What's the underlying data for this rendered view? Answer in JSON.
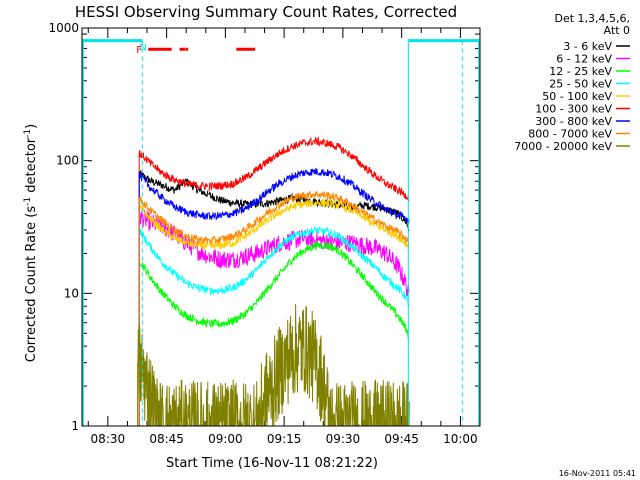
{
  "colors": {
    "background": "#ffffff",
    "axes": "#000000",
    "attenuator": "#00e5e5",
    "flare_flag": "#ff0000"
  },
  "chart_data": {
    "type": "line",
    "title": "HESSI Observing Summary Count Rates, Corrected",
    "xlabel": "Start Time (16-Nov-11 08:21:22)",
    "ylabel_main": "Corrected Count Rate (s",
    "ylabel_sup1": "-1",
    "ylabel_mid": " detector",
    "ylabel_sup2": "-1",
    "ylabel_end": ")",
    "y_scale": "log",
    "ylim": [
      1,
      1000
    ],
    "xlim_minutes_of_day": [
      503.4,
      605
    ],
    "x_ticks": [
      {
        "t": 510,
        "label": "08:30"
      },
      {
        "t": 525,
        "label": "08:45"
      },
      {
        "t": 540,
        "label": "09:00"
      },
      {
        "t": 555,
        "label": "09:15"
      },
      {
        "t": 570,
        "label": "09:30"
      },
      {
        "t": 585,
        "label": "09:45"
      },
      {
        "t": 600,
        "label": "10:00"
      }
    ],
    "y_ticks": [
      {
        "v": 1,
        "label": "1"
      },
      {
        "v": 10,
        "label": "10"
      },
      {
        "v": 100,
        "label": "100"
      },
      {
        "v": 1000,
        "label": "1000"
      }
    ],
    "legend_title_1": "Det 1,3,4,5,6,",
    "legend_title_2": "Att 0",
    "legend_placement": "right",
    "data_gap": [
      535.6,
      535.7
    ],
    "series": [
      {
        "name": "3 - 6 keV",
        "color": "#000000",
        "points": [
          [
            518,
            80
          ],
          [
            521,
            70
          ],
          [
            524,
            65
          ],
          [
            527,
            60
          ],
          [
            530,
            70
          ],
          [
            533,
            60
          ],
          [
            536,
            55
          ],
          [
            539,
            50
          ],
          [
            542,
            48
          ],
          [
            545,
            47
          ],
          [
            548,
            47
          ],
          [
            551,
            48
          ],
          [
            554,
            50
          ],
          [
            557,
            52
          ],
          [
            560,
            51
          ],
          [
            563,
            49
          ],
          [
            566,
            48
          ],
          [
            569,
            46
          ],
          [
            572,
            44
          ],
          [
            575,
            46
          ],
          [
            578,
            45
          ],
          [
            581,
            43
          ],
          [
            584,
            40
          ],
          [
            586,
            35
          ],
          [
            587,
            30
          ]
        ]
      },
      {
        "name": "6 - 12 keV",
        "color": "#ff00ff",
        "points": [
          [
            518,
            38
          ],
          [
            521,
            34
          ],
          [
            524,
            32
          ],
          [
            527,
            28
          ],
          [
            530,
            24
          ],
          [
            533,
            21
          ],
          [
            536,
            19
          ],
          [
            539,
            18
          ],
          [
            542,
            18
          ],
          [
            545,
            19
          ],
          [
            548,
            20
          ],
          [
            551,
            22
          ],
          [
            554,
            24
          ],
          [
            557,
            25
          ],
          [
            560,
            26
          ],
          [
            563,
            25
          ],
          [
            566,
            25
          ],
          [
            569,
            24
          ],
          [
            572,
            24
          ],
          [
            575,
            23
          ],
          [
            578,
            22
          ],
          [
            581,
            20
          ],
          [
            584,
            16
          ],
          [
            586,
            12
          ],
          [
            587,
            9
          ]
        ]
      },
      {
        "name": "12 - 25 keV",
        "color": "#00ff00",
        "points": [
          [
            518,
            18
          ],
          [
            521,
            13
          ],
          [
            524,
            10
          ],
          [
            527,
            8
          ],
          [
            530,
            6.8
          ],
          [
            533,
            6.2
          ],
          [
            536,
            5.9
          ],
          [
            539,
            5.9
          ],
          [
            542,
            6.2
          ],
          [
            545,
            7
          ],
          [
            548,
            8.5
          ],
          [
            551,
            11
          ],
          [
            554,
            14
          ],
          [
            557,
            18
          ],
          [
            560,
            21
          ],
          [
            563,
            23
          ],
          [
            566,
            23
          ],
          [
            569,
            21
          ],
          [
            572,
            17
          ],
          [
            575,
            13.5
          ],
          [
            578,
            10.5
          ],
          [
            581,
            8.5
          ],
          [
            584,
            6.8
          ],
          [
            586,
            5.5
          ],
          [
            587,
            4.5
          ]
        ]
      },
      {
        "name": "25 - 50 keV",
        "color": "#00ffff",
        "points": [
          [
            518,
            30
          ],
          [
            521,
            22
          ],
          [
            524,
            17
          ],
          [
            527,
            14
          ],
          [
            530,
            12
          ],
          [
            533,
            11
          ],
          [
            536,
            10.5
          ],
          [
            539,
            10.5
          ],
          [
            542,
            11
          ],
          [
            545,
            12.5
          ],
          [
            548,
            15
          ],
          [
            551,
            19
          ],
          [
            554,
            23
          ],
          [
            557,
            26.5
          ],
          [
            560,
            28.5
          ],
          [
            563,
            30
          ],
          [
            566,
            29
          ],
          [
            569,
            27
          ],
          [
            572,
            23
          ],
          [
            575,
            19
          ],
          [
            578,
            16
          ],
          [
            581,
            13
          ],
          [
            584,
            11
          ],
          [
            586,
            9.5
          ],
          [
            587,
            8
          ]
        ]
      },
      {
        "name": "50 - 100 keV",
        "color": "#ffcc00",
        "points": [
          [
            518,
            45
          ],
          [
            521,
            36
          ],
          [
            524,
            30
          ],
          [
            527,
            26
          ],
          [
            530,
            24
          ],
          [
            533,
            23
          ],
          [
            536,
            22.5
          ],
          [
            539,
            23
          ],
          [
            542,
            24
          ],
          [
            545,
            27
          ],
          [
            548,
            31
          ],
          [
            551,
            36
          ],
          [
            554,
            41
          ],
          [
            557,
            45
          ],
          [
            560,
            47
          ],
          [
            563,
            48
          ],
          [
            566,
            48
          ],
          [
            569,
            46
          ],
          [
            572,
            43
          ],
          [
            575,
            38
          ],
          [
            578,
            33
          ],
          [
            581,
            30
          ],
          [
            584,
            27
          ],
          [
            586,
            24
          ],
          [
            587,
            22
          ]
        ]
      },
      {
        "name": "100 - 300 keV",
        "color": "#ff0000",
        "points": [
          [
            518,
            115
          ],
          [
            521,
            95
          ],
          [
            524,
            80
          ],
          [
            527,
            72
          ],
          [
            530,
            67
          ],
          [
            533,
            65
          ],
          [
            536,
            64
          ],
          [
            539,
            65
          ],
          [
            542,
            67
          ],
          [
            545,
            74
          ],
          [
            548,
            85
          ],
          [
            551,
            100
          ],
          [
            554,
            115
          ],
          [
            557,
            128
          ],
          [
            560,
            136
          ],
          [
            563,
            140
          ],
          [
            566,
            135
          ],
          [
            569,
            126
          ],
          [
            572,
            110
          ],
          [
            575,
            92
          ],
          [
            578,
            78
          ],
          [
            581,
            67
          ],
          [
            584,
            60
          ],
          [
            586,
            55
          ],
          [
            587,
            52
          ]
        ]
      },
      {
        "name": "300 - 800 keV",
        "color": "#0000ff",
        "points": [
          [
            518,
            78
          ],
          [
            521,
            62
          ],
          [
            524,
            52
          ],
          [
            527,
            45
          ],
          [
            530,
            41
          ],
          [
            533,
            39
          ],
          [
            536,
            38
          ],
          [
            539,
            38.5
          ],
          [
            542,
            40
          ],
          [
            545,
            43
          ],
          [
            548,
            50
          ],
          [
            551,
            59
          ],
          [
            554,
            68
          ],
          [
            557,
            76
          ],
          [
            560,
            81
          ],
          [
            563,
            83
          ],
          [
            566,
            81
          ],
          [
            569,
            76
          ],
          [
            572,
            67
          ],
          [
            575,
            57
          ],
          [
            578,
            49
          ],
          [
            581,
            43
          ],
          [
            584,
            39
          ],
          [
            586,
            37
          ],
          [
            587,
            35
          ]
        ]
      },
      {
        "name": "800 - 7000 keV",
        "color": "#ff8800",
        "points": [
          [
            518,
            52
          ],
          [
            521,
            42
          ],
          [
            524,
            35
          ],
          [
            527,
            30
          ],
          [
            530,
            27
          ],
          [
            533,
            25.5
          ],
          [
            536,
            25
          ],
          [
            539,
            25.5
          ],
          [
            542,
            27
          ],
          [
            545,
            30
          ],
          [
            548,
            35
          ],
          [
            551,
            41
          ],
          [
            554,
            47
          ],
          [
            557,
            52
          ],
          [
            560,
            55
          ],
          [
            563,
            56
          ],
          [
            566,
            55
          ],
          [
            569,
            52
          ],
          [
            572,
            47
          ],
          [
            575,
            41
          ],
          [
            578,
            36
          ],
          [
            581,
            32
          ],
          [
            584,
            29
          ],
          [
            586,
            26
          ],
          [
            587,
            24
          ]
        ]
      },
      {
        "name": "7000 - 20000 keV",
        "color": "#808000",
        "points": [
          [
            517.6,
            3
          ],
          [
            519,
            2.5
          ],
          [
            521,
            1.6
          ],
          [
            522,
            1.25
          ],
          [
            523,
            1
          ],
          [
            548,
            1
          ],
          [
            550,
            1.6
          ],
          [
            552,
            2
          ],
          [
            554,
            2.6
          ],
          [
            556,
            3.2
          ],
          [
            558,
            3.8
          ],
          [
            560,
            3.9
          ],
          [
            562,
            3.4
          ],
          [
            564,
            2.6
          ],
          [
            565,
            2
          ],
          [
            566,
            1.4
          ],
          [
            567,
            1
          ],
          [
            587,
            1
          ]
        ]
      }
    ],
    "annotations": {
      "attenuator_label": "N",
      "attenuator_segments": [
        [
          503.4,
          518.8
        ],
        [
          586.7,
          605
        ]
      ],
      "attenuator_dashed_x": [
        518.8,
        600.5
      ],
      "attenuator_solid_x": [
        586.7
      ],
      "flare_label": "F",
      "flare_segments": [
        [
          520.3,
          526.3
        ],
        [
          528.3,
          529.8
        ],
        [
          529.9,
          530.5
        ],
        [
          542.8,
          547.6
        ]
      ]
    },
    "footer_date": "16-Nov-2011 05:41"
  }
}
